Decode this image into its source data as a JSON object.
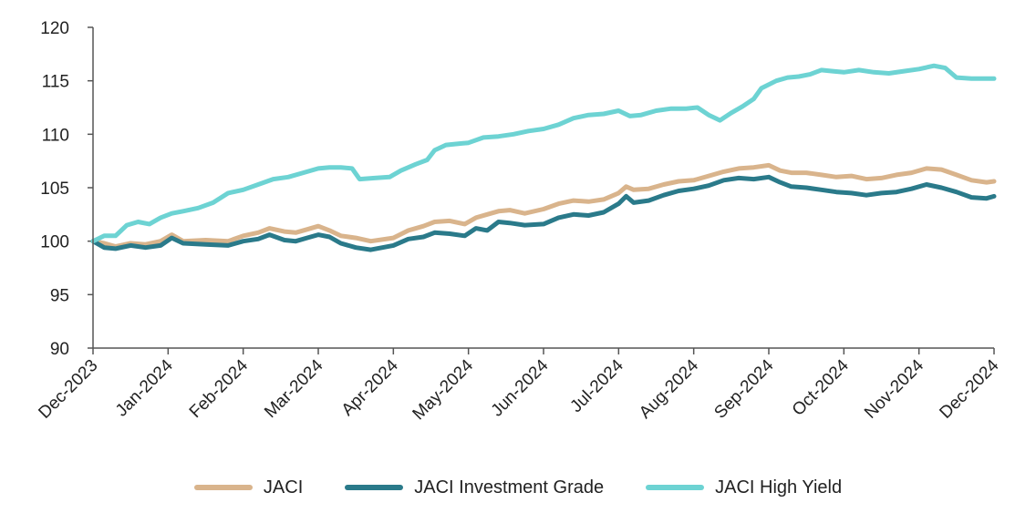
{
  "chart_data": {
    "type": "line",
    "title": "",
    "xlabel": "",
    "ylabel": "",
    "ylim": [
      90,
      120
    ],
    "yticks": [
      90,
      95,
      100,
      105,
      110,
      115,
      120
    ],
    "grid": false,
    "legend_position": "bottom",
    "x_categories": [
      "Dec-2023",
      "Jan-2024",
      "Feb-2024",
      "Mar-2024",
      "Apr-2024",
      "May-2024",
      "Jun-2024",
      "Jul-2024",
      "Aug-2024",
      "Sep-2024",
      "Oct-2024",
      "Nov-2024",
      "Dec-2024"
    ],
    "series": [
      {
        "name": "JACI",
        "color": "#D9B48C",
        "points": [
          [
            0,
            100
          ],
          [
            0.15,
            99.8
          ],
          [
            0.3,
            99.5
          ],
          [
            0.5,
            99.8
          ],
          [
            0.7,
            99.7
          ],
          [
            0.9,
            100.0
          ],
          [
            1.05,
            100.6
          ],
          [
            1.2,
            100.0
          ],
          [
            1.5,
            100.1
          ],
          [
            1.8,
            100.0
          ],
          [
            2.0,
            100.5
          ],
          [
            2.2,
            100.8
          ],
          [
            2.35,
            101.2
          ],
          [
            2.55,
            100.9
          ],
          [
            2.7,
            100.8
          ],
          [
            2.85,
            101.1
          ],
          [
            3.0,
            101.4
          ],
          [
            3.15,
            101.0
          ],
          [
            3.3,
            100.5
          ],
          [
            3.5,
            100.3
          ],
          [
            3.7,
            100.0
          ],
          [
            4.0,
            100.3
          ],
          [
            4.2,
            101.0
          ],
          [
            4.4,
            101.4
          ],
          [
            4.55,
            101.8
          ],
          [
            4.75,
            101.9
          ],
          [
            4.95,
            101.6
          ],
          [
            5.1,
            102.2
          ],
          [
            5.25,
            102.5
          ],
          [
            5.4,
            102.8
          ],
          [
            5.55,
            102.9
          ],
          [
            5.75,
            102.6
          ],
          [
            6.0,
            103.0
          ],
          [
            6.2,
            103.5
          ],
          [
            6.4,
            103.8
          ],
          [
            6.6,
            103.7
          ],
          [
            6.8,
            103.9
          ],
          [
            7.0,
            104.5
          ],
          [
            7.1,
            105.1
          ],
          [
            7.2,
            104.8
          ],
          [
            7.4,
            104.9
          ],
          [
            7.6,
            105.3
          ],
          [
            7.8,
            105.6
          ],
          [
            8.0,
            105.7
          ],
          [
            8.2,
            106.1
          ],
          [
            8.4,
            106.5
          ],
          [
            8.6,
            106.8
          ],
          [
            8.8,
            106.9
          ],
          [
            9.0,
            107.1
          ],
          [
            9.15,
            106.6
          ],
          [
            9.3,
            106.4
          ],
          [
            9.5,
            106.4
          ],
          [
            9.7,
            106.2
          ],
          [
            9.9,
            106.0
          ],
          [
            10.1,
            106.1
          ],
          [
            10.3,
            105.8
          ],
          [
            10.5,
            105.9
          ],
          [
            10.7,
            106.2
          ],
          [
            10.9,
            106.4
          ],
          [
            11.1,
            106.8
          ],
          [
            11.3,
            106.7
          ],
          [
            11.5,
            106.2
          ],
          [
            11.7,
            105.7
          ],
          [
            11.9,
            105.5
          ],
          [
            12.0,
            105.6
          ]
        ]
      },
      {
        "name": "JACI Investment Grade",
        "color": "#2A7A8A",
        "points": [
          [
            0,
            100
          ],
          [
            0.15,
            99.4
          ],
          [
            0.3,
            99.3
          ],
          [
            0.5,
            99.6
          ],
          [
            0.7,
            99.4
          ],
          [
            0.9,
            99.6
          ],
          [
            1.05,
            100.3
          ],
          [
            1.2,
            99.8
          ],
          [
            1.5,
            99.7
          ],
          [
            1.8,
            99.6
          ],
          [
            2.0,
            100.0
          ],
          [
            2.2,
            100.2
          ],
          [
            2.35,
            100.6
          ],
          [
            2.55,
            100.1
          ],
          [
            2.7,
            100.0
          ],
          [
            2.85,
            100.3
          ],
          [
            3.0,
            100.6
          ],
          [
            3.15,
            100.4
          ],
          [
            3.3,
            99.8
          ],
          [
            3.5,
            99.4
          ],
          [
            3.7,
            99.2
          ],
          [
            4.0,
            99.6
          ],
          [
            4.2,
            100.2
          ],
          [
            4.4,
            100.4
          ],
          [
            4.55,
            100.8
          ],
          [
            4.75,
            100.7
          ],
          [
            4.95,
            100.5
          ],
          [
            5.1,
            101.2
          ],
          [
            5.25,
            101.0
          ],
          [
            5.4,
            101.8
          ],
          [
            5.55,
            101.7
          ],
          [
            5.75,
            101.5
          ],
          [
            6.0,
            101.6
          ],
          [
            6.2,
            102.2
          ],
          [
            6.4,
            102.5
          ],
          [
            6.6,
            102.4
          ],
          [
            6.8,
            102.7
          ],
          [
            7.0,
            103.5
          ],
          [
            7.1,
            104.2
          ],
          [
            7.2,
            103.6
          ],
          [
            7.4,
            103.8
          ],
          [
            7.6,
            104.3
          ],
          [
            7.8,
            104.7
          ],
          [
            8.0,
            104.9
          ],
          [
            8.2,
            105.2
          ],
          [
            8.4,
            105.7
          ],
          [
            8.6,
            105.9
          ],
          [
            8.8,
            105.8
          ],
          [
            9.0,
            106.0
          ],
          [
            9.15,
            105.5
          ],
          [
            9.3,
            105.1
          ],
          [
            9.5,
            105.0
          ],
          [
            9.7,
            104.8
          ],
          [
            9.9,
            104.6
          ],
          [
            10.1,
            104.5
          ],
          [
            10.3,
            104.3
          ],
          [
            10.5,
            104.5
          ],
          [
            10.7,
            104.6
          ],
          [
            10.9,
            104.9
          ],
          [
            11.1,
            105.3
          ],
          [
            11.3,
            105.0
          ],
          [
            11.5,
            104.6
          ],
          [
            11.7,
            104.1
          ],
          [
            11.9,
            104.0
          ],
          [
            12.0,
            104.2
          ]
        ]
      },
      {
        "name": "JACI High Yield",
        "color": "#6DD3D3",
        "points": [
          [
            0,
            100
          ],
          [
            0.15,
            100.5
          ],
          [
            0.3,
            100.5
          ],
          [
            0.45,
            101.5
          ],
          [
            0.6,
            101.8
          ],
          [
            0.75,
            101.6
          ],
          [
            0.9,
            102.2
          ],
          [
            1.05,
            102.6
          ],
          [
            1.2,
            102.8
          ],
          [
            1.4,
            103.1
          ],
          [
            1.6,
            103.6
          ],
          [
            1.8,
            104.5
          ],
          [
            2.0,
            104.8
          ],
          [
            2.2,
            105.3
          ],
          [
            2.4,
            105.8
          ],
          [
            2.6,
            106.0
          ],
          [
            2.8,
            106.4
          ],
          [
            3.0,
            106.8
          ],
          [
            3.15,
            106.9
          ],
          [
            3.3,
            106.9
          ],
          [
            3.45,
            106.8
          ],
          [
            3.55,
            105.8
          ],
          [
            3.75,
            105.9
          ],
          [
            3.95,
            106.0
          ],
          [
            4.1,
            106.6
          ],
          [
            4.3,
            107.2
          ],
          [
            4.45,
            107.6
          ],
          [
            4.55,
            108.5
          ],
          [
            4.7,
            109.0
          ],
          [
            4.85,
            109.1
          ],
          [
            5.0,
            109.2
          ],
          [
            5.2,
            109.7
          ],
          [
            5.4,
            109.8
          ],
          [
            5.6,
            110.0
          ],
          [
            5.8,
            110.3
          ],
          [
            6.0,
            110.5
          ],
          [
            6.2,
            110.9
          ],
          [
            6.4,
            111.5
          ],
          [
            6.6,
            111.8
          ],
          [
            6.8,
            111.9
          ],
          [
            7.0,
            112.2
          ],
          [
            7.15,
            111.7
          ],
          [
            7.3,
            111.8
          ],
          [
            7.5,
            112.2
          ],
          [
            7.7,
            112.4
          ],
          [
            7.9,
            112.4
          ],
          [
            8.05,
            112.5
          ],
          [
            8.2,
            111.8
          ],
          [
            8.35,
            111.3
          ],
          [
            8.5,
            112.0
          ],
          [
            8.65,
            112.6
          ],
          [
            8.8,
            113.3
          ],
          [
            8.9,
            114.3
          ],
          [
            9.1,
            115.0
          ],
          [
            9.25,
            115.3
          ],
          [
            9.4,
            115.4
          ],
          [
            9.55,
            115.6
          ],
          [
            9.7,
            116.0
          ],
          [
            9.85,
            115.9
          ],
          [
            10.0,
            115.8
          ],
          [
            10.2,
            116.0
          ],
          [
            10.4,
            115.8
          ],
          [
            10.6,
            115.7
          ],
          [
            10.8,
            115.9
          ],
          [
            11.0,
            116.1
          ],
          [
            11.2,
            116.4
          ],
          [
            11.35,
            116.2
          ],
          [
            11.5,
            115.3
          ],
          [
            11.7,
            115.2
          ],
          [
            11.9,
            115.2
          ],
          [
            12.0,
            115.2
          ]
        ]
      }
    ]
  }
}
